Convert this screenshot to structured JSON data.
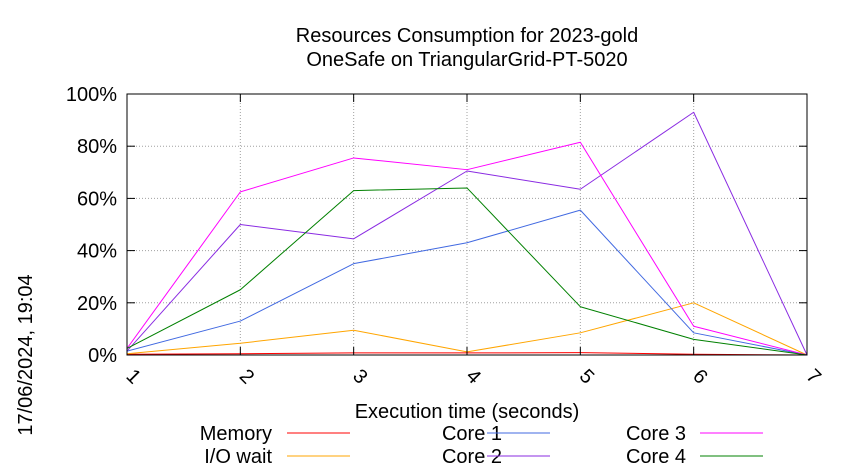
{
  "timestamp": "17/06/2024, 19:04",
  "chart_data": {
    "type": "line",
    "title": [
      "Resources Consumption for 2023-gold",
      "OneSafe on TriangularGrid-PT-5020"
    ],
    "xlabel": "Execution time (seconds)",
    "ylabel": "",
    "x": [
      1,
      2,
      3,
      4,
      5,
      6,
      7
    ],
    "x_ticks": [
      "1",
      "2",
      "3",
      "4",
      "5",
      "6",
      "7"
    ],
    "xlim": [
      1,
      7
    ],
    "y_ticks": [
      "0%",
      "20%",
      "40%",
      "60%",
      "80%",
      "100%"
    ],
    "ylim": [
      0,
      100
    ],
    "grid": true,
    "legend_position": "bottom",
    "series": [
      {
        "name": "Memory",
        "color": "#ff0000",
        "values": [
          0.3,
          0.5,
          0.8,
          0.8,
          0.9,
          0.3,
          0
        ]
      },
      {
        "name": "I/O wait",
        "color": "#ffa500",
        "values": [
          0.5,
          4.5,
          9.5,
          1.2,
          8.5,
          20,
          0
        ]
      },
      {
        "name": "Core 1",
        "color": "#4169e1",
        "values": [
          1.5,
          13,
          35,
          43,
          55.5,
          8.5,
          0
        ]
      },
      {
        "name": "Core 2",
        "color": "#8a2be2",
        "values": [
          1.5,
          50,
          44.5,
          70.5,
          63.5,
          93,
          0
        ]
      },
      {
        "name": "Core 3",
        "color": "#ff00ff",
        "values": [
          2.5,
          62.5,
          75.5,
          71,
          81.5,
          11,
          0
        ]
      },
      {
        "name": "Core 4",
        "color": "#008000",
        "values": [
          2.5,
          25,
          63,
          64,
          18.5,
          6,
          0
        ]
      }
    ]
  }
}
